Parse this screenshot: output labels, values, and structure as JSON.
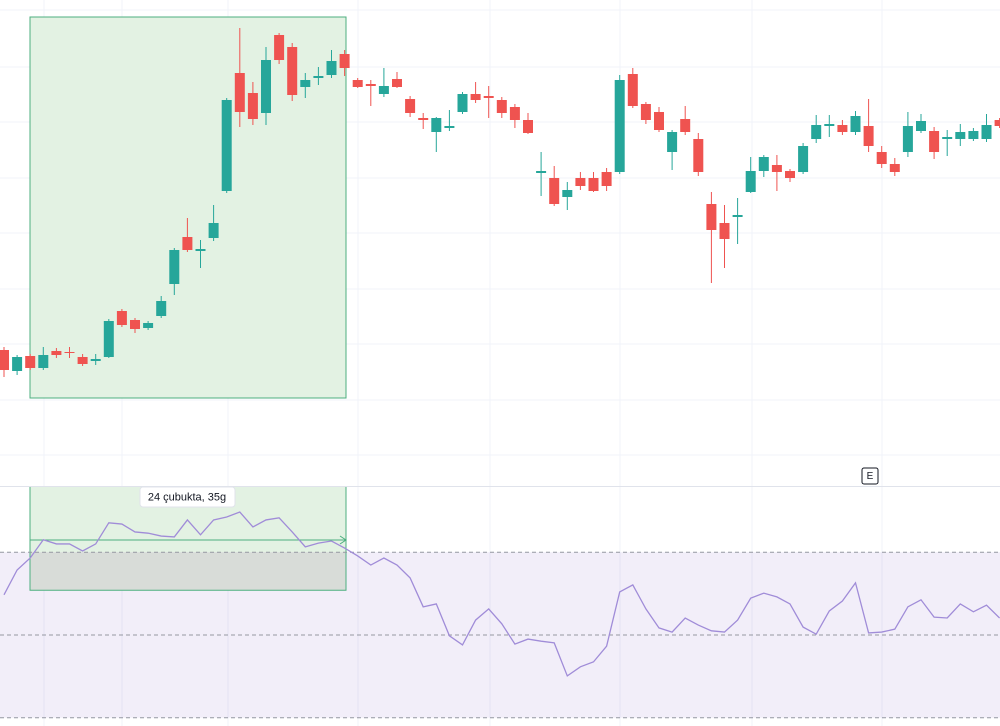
{
  "chart_data": [
    {
      "type": "candlestick",
      "ylim": [
        0,
        486
      ],
      "up_color": "#26a69a",
      "down_color": "#ef5350",
      "open": [
        136,
        115,
        130,
        118,
        135,
        134,
        129,
        125,
        129,
        175,
        166,
        158,
        170,
        202,
        249,
        235,
        248,
        295,
        413,
        393,
        373,
        451,
        439,
        399,
        408,
        411,
        432,
        406,
        402,
        392,
        407,
        387,
        368,
        354,
        358,
        374,
        392,
        390,
        386,
        379,
        366,
        313,
        308,
        289,
        308,
        308,
        314,
        314,
        412,
        382,
        374,
        334,
        367,
        347,
        282,
        263,
        269,
        294,
        315,
        321,
        315,
        314,
        347,
        360,
        361,
        354,
        360,
        334,
        322,
        334,
        355,
        355,
        347,
        347,
        347,
        347,
        366
      ],
      "high": [
        139,
        131,
        132,
        139,
        138,
        139,
        132,
        132,
        167,
        177,
        168,
        165,
        190,
        238,
        268,
        246,
        281,
        388,
        458,
        404,
        439,
        453,
        443,
        413,
        419,
        436,
        436,
        408,
        406,
        418,
        414,
        390,
        373,
        369,
        376,
        394,
        404,
        400,
        389,
        382,
        373,
        334,
        320,
        304,
        314,
        314,
        318,
        411,
        418,
        384,
        379,
        356,
        380,
        353,
        294,
        281,
        288,
        329,
        331,
        331,
        317,
        343,
        371,
        371,
        366,
        375,
        387,
        340,
        328,
        374,
        372,
        359,
        356,
        362,
        358,
        372,
        368
      ],
      "low": [
        109,
        111,
        116,
        116,
        128,
        128,
        120,
        121,
        128,
        159,
        153,
        156,
        168,
        191,
        234,
        218,
        245,
        293,
        359,
        361,
        361,
        422,
        385,
        388,
        401,
        408,
        410,
        398,
        380,
        389,
        398,
        369,
        357,
        334,
        355,
        372,
        383,
        368,
        368,
        358,
        352,
        290,
        280,
        276,
        296,
        294,
        295,
        312,
        378,
        362,
        354,
        316,
        351,
        310,
        203,
        218,
        242,
        293,
        309,
        295,
        304,
        312,
        343,
        349,
        351,
        351,
        334,
        318,
        310,
        329,
        353,
        327,
        330,
        340,
        345,
        344,
        358
      ],
      "close": [
        116,
        129,
        118,
        131,
        131,
        133,
        122,
        127,
        165,
        161,
        157,
        163,
        185,
        236,
        236,
        237,
        263,
        386,
        374,
        367,
        426,
        426,
        391,
        406,
        410,
        425,
        418,
        399,
        400,
        400,
        399,
        373,
        366,
        368,
        360,
        392,
        386,
        388,
        373,
        366,
        353,
        315,
        282,
        296,
        300,
        295,
        300,
        406,
        380,
        366,
        356,
        354,
        354,
        314,
        256,
        247,
        271,
        315,
        329,
        314,
        308,
        340,
        361,
        362,
        354,
        370,
        340,
        322,
        314,
        360,
        365,
        334,
        349,
        354,
        355,
        361,
        360
      ]
    },
    {
      "type": "line",
      "ylim": [
        28,
        86
      ],
      "color": "#a08cd8",
      "band_color": "#7e57c2",
      "hlines": [
        70,
        50,
        30
      ],
      "values": [
        59.7,
        65.7,
        68.6,
        73.0,
        72.0,
        72.0,
        70.3,
        72.0,
        77.1,
        76.8,
        74.9,
        74.6,
        73.9,
        73.7,
        77.8,
        74.2,
        77.8,
        78.5,
        79.7,
        76.1,
        77.8,
        78.3,
        74.9,
        71.3,
        72.2,
        72.7,
        71.0,
        69.1,
        66.9,
        68.6,
        66.9,
        63.8,
        56.8,
        57.5,
        49.8,
        47.6,
        53.6,
        56.3,
        52.7,
        47.8,
        49.0,
        48.5,
        48.1,
        40.1,
        42.3,
        43.5,
        47.3,
        60.4,
        62.1,
        56.3,
        51.7,
        50.7,
        54.1,
        52.4,
        51.0,
        50.7,
        53.6,
        58.9,
        60.1,
        59.2,
        57.5,
        51.9,
        50.2,
        55.8,
        58.2,
        62.6,
        50.5,
        50.7,
        51.4,
        56.8,
        58.5,
        54.3,
        54.1,
        57.5,
        55.6,
        57.2,
        54.1
      ]
    }
  ],
  "annotations": {
    "measure_label": "24 çubukta, 35g",
    "event_marker": "E"
  }
}
